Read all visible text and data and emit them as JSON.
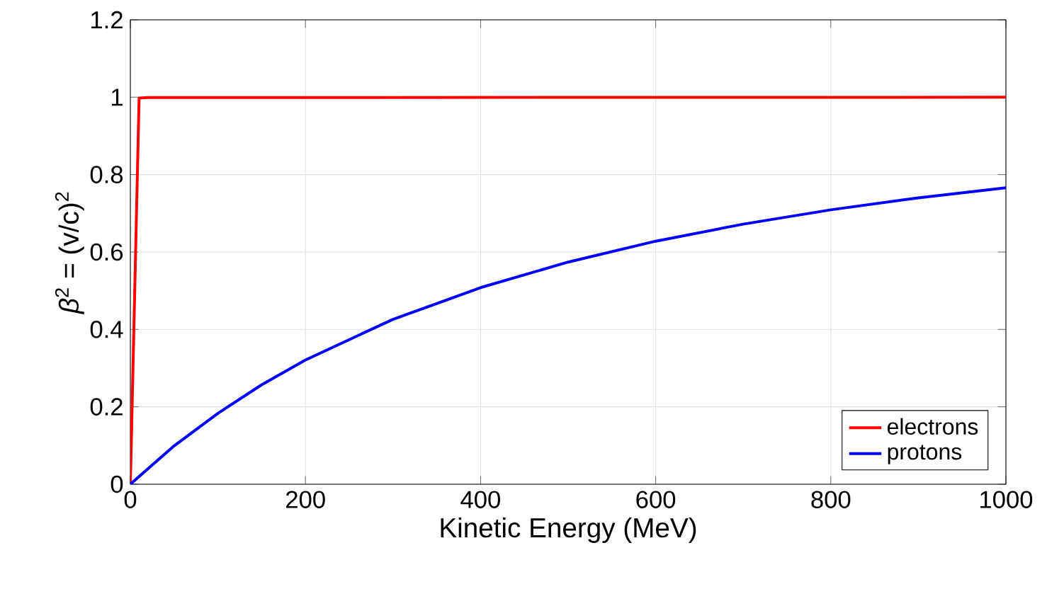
{
  "chart_data": {
    "type": "line",
    "xlabel": "Kinetic Energy (MeV)",
    "ylabel": "*β*$^{2}$ = (v/c)$^{2}$",
    "xlim": [
      0,
      1000
    ],
    "ylim": [
      0,
      1.2
    ],
    "xticks": [
      0,
      200,
      400,
      600,
      800,
      1000
    ],
    "yticks": [
      0,
      0.2,
      0.4,
      0.6,
      0.8,
      1,
      1.2
    ],
    "grid": true,
    "legend": "bottom right",
    "line_style": "solid",
    "marker": "none",
    "series": [
      {
        "name": "electrons",
        "color": "#ff0000",
        "x": [
          0,
          10,
          20,
          1000
        ],
        "values": [
          0,
          0.998,
          0.999,
          1
        ]
      },
      {
        "name": "protons",
        "color": "#0000ff",
        "x": [
          0,
          50,
          100,
          150,
          200,
          300,
          400,
          500,
          600,
          700,
          800,
          900,
          1000
        ],
        "values": [
          0,
          0.099,
          0.183,
          0.257,
          0.321,
          0.426,
          0.508,
          0.574,
          0.628,
          0.672,
          0.709,
          0.74,
          0.766
        ]
      }
    ]
  }
}
